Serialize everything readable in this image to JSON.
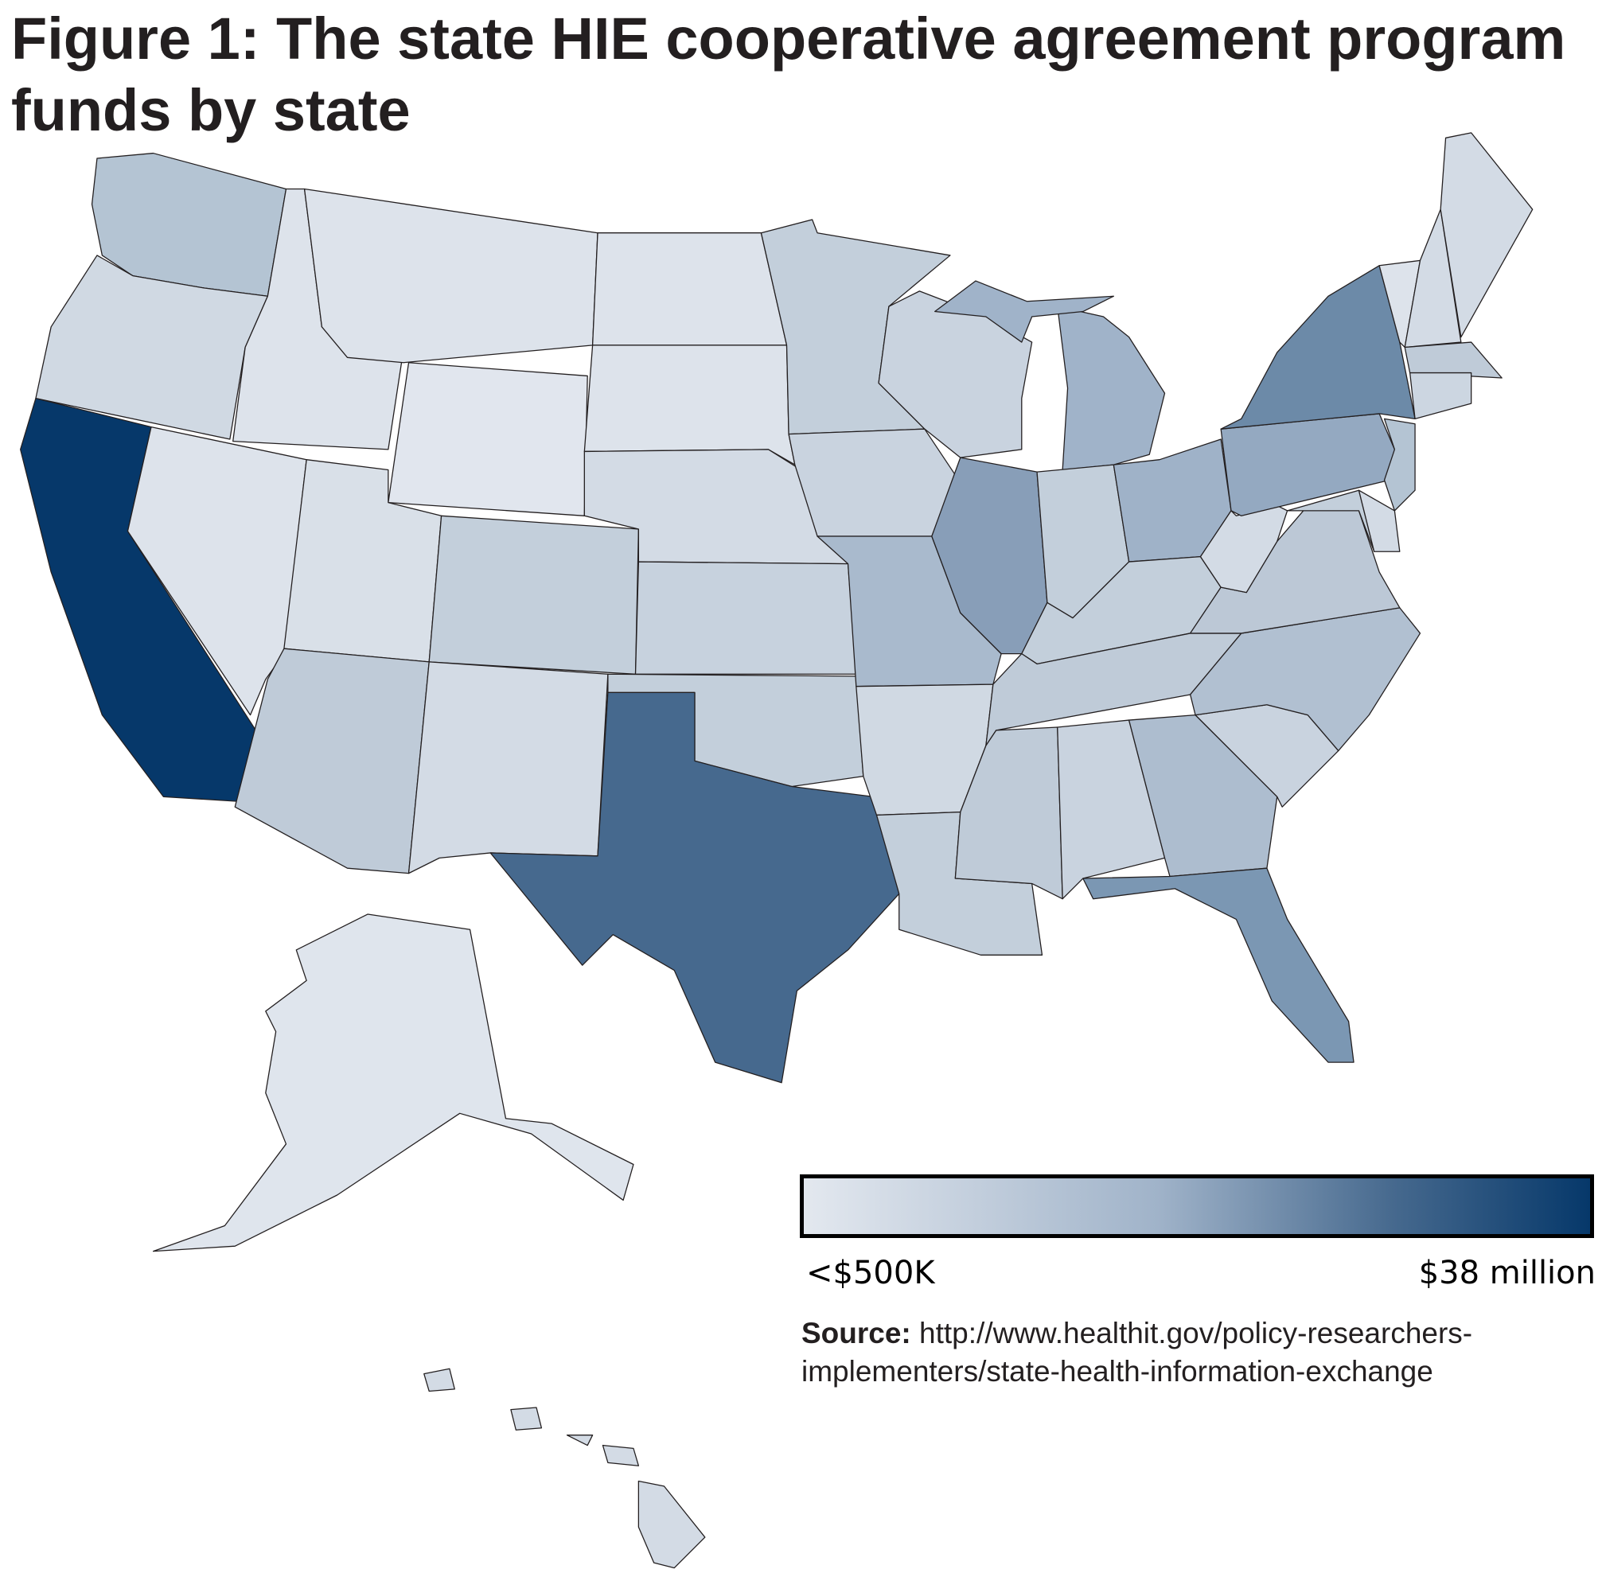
{
  "title": "Figure 1: The state HIE cooperative agreement program funds by state",
  "legend": {
    "min_label": "<$500K",
    "max_label": "$38 million",
    "color_low": "#e3e8ef",
    "color_high": "#06386a"
  },
  "source": {
    "label": "Source:",
    "text": "http://www.healthit.gov/policy-researchers-implementers/state-health-information-exchange"
  },
  "state_colors": {
    "WA": "#b4c4d3",
    "OR": "#d0d9e3",
    "CA": "#06386a",
    "NV": "#dde3eb",
    "ID": "#dde3eb",
    "MT": "#dde3eb",
    "WY": "#e1e6ee",
    "UT": "#d9e0e8",
    "CO": "#c3cfdb",
    "AZ": "#bfcbd8",
    "NM": "#d3dbe5",
    "ND": "#dde3eb",
    "SD": "#dde3eb",
    "NE": "#d3dbe5",
    "KS": "#c7d2de",
    "OK": "#c3cfdb",
    "TX": "#46698e",
    "MN": "#c3cfdb",
    "IA": "#c9d3df",
    "MO": "#a9bacd",
    "AR": "#d0d9e3",
    "LA": "#c3cfdb",
    "WI": "#c9d3df",
    "IL": "#889eb8",
    "MI": "#a0b3c9",
    "IN": "#c3cfdb",
    "OH": "#9fb2c8",
    "KY": "#c3cfdb",
    "TN": "#bfcbd8",
    "MS": "#bfcbd8",
    "AL": "#c9d3df",
    "GA": "#adbdcf",
    "FL": "#7b97b3",
    "SC": "#c9d3df",
    "NC": "#b1c0d1",
    "VA": "#bcc8d6",
    "WV": "#d3dbe5",
    "PA": "#94a9c1",
    "NY": "#6c8aa8",
    "VT": "#dde3eb",
    "NH": "#d3dbe5",
    "ME": "#d3dbe5",
    "MA": "#bfcbd8",
    "CT": "#ccd6e1",
    "NJ": "#b4c4d3",
    "MD": "#c3cfdb",
    "DE": "#d3dbe5",
    "AK": "#dfe5ed",
    "HI": "#d3dbe5"
  }
}
